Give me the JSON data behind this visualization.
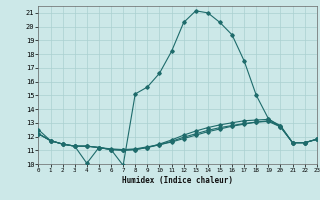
{
  "title": "",
  "xlabel": "Humidex (Indice chaleur)",
  "bg_color": "#cce8e8",
  "grid_color": "#aad0d0",
  "line_color": "#1e6b6b",
  "xlim": [
    0,
    23
  ],
  "ylim": [
    10,
    21.5
  ],
  "xticks": [
    0,
    1,
    2,
    3,
    4,
    5,
    6,
    7,
    8,
    9,
    10,
    11,
    12,
    13,
    14,
    15,
    16,
    17,
    18,
    19,
    20,
    21,
    22,
    23
  ],
  "yticks": [
    10,
    11,
    12,
    13,
    14,
    15,
    16,
    17,
    18,
    19,
    20,
    21
  ],
  "line1_x": [
    0,
    1,
    2,
    3,
    4,
    5,
    6,
    7,
    8,
    9,
    10,
    11,
    12,
    13,
    14,
    15,
    16,
    17,
    18,
    19,
    20,
    21,
    22,
    23
  ],
  "line1_y": [
    12.5,
    11.7,
    11.45,
    11.3,
    10.05,
    11.2,
    11.05,
    9.9,
    15.1,
    15.6,
    16.6,
    18.2,
    20.3,
    21.15,
    21.0,
    20.3,
    19.4,
    17.5,
    15.0,
    13.3,
    12.7,
    11.55,
    11.55,
    11.8
  ],
  "line2_x": [
    0,
    1,
    2,
    3,
    4,
    5,
    6,
    7,
    8,
    9,
    10,
    11,
    12,
    13,
    14,
    15,
    16,
    17,
    18,
    19,
    20,
    21,
    22,
    23
  ],
  "line2_y": [
    12.2,
    11.7,
    11.45,
    11.3,
    11.3,
    11.2,
    11.1,
    11.05,
    11.1,
    11.25,
    11.4,
    11.6,
    11.85,
    12.1,
    12.35,
    12.55,
    12.75,
    12.9,
    13.05,
    13.15,
    12.75,
    11.55,
    11.55,
    11.8
  ],
  "line3_x": [
    0,
    1,
    2,
    3,
    4,
    5,
    6,
    7,
    8,
    9,
    10,
    11,
    12,
    13,
    14,
    15,
    16,
    17,
    18,
    19,
    20,
    21,
    22,
    23
  ],
  "line3_y": [
    12.2,
    11.7,
    11.45,
    11.3,
    11.3,
    11.2,
    11.05,
    11.0,
    11.05,
    11.2,
    11.4,
    11.65,
    11.95,
    12.2,
    12.45,
    12.65,
    12.8,
    12.95,
    13.05,
    13.1,
    12.7,
    11.55,
    11.55,
    11.8
  ],
  "line4_x": [
    0,
    1,
    2,
    3,
    4,
    5,
    6,
    7,
    8,
    9,
    10,
    11,
    12,
    13,
    14,
    15,
    16,
    17,
    18,
    19,
    20,
    21,
    22,
    23
  ],
  "line4_y": [
    12.2,
    11.7,
    11.45,
    11.3,
    11.3,
    11.2,
    11.05,
    11.0,
    11.05,
    11.2,
    11.45,
    11.75,
    12.1,
    12.4,
    12.65,
    12.85,
    13.0,
    13.15,
    13.2,
    13.25,
    12.8,
    11.55,
    11.55,
    11.8
  ]
}
